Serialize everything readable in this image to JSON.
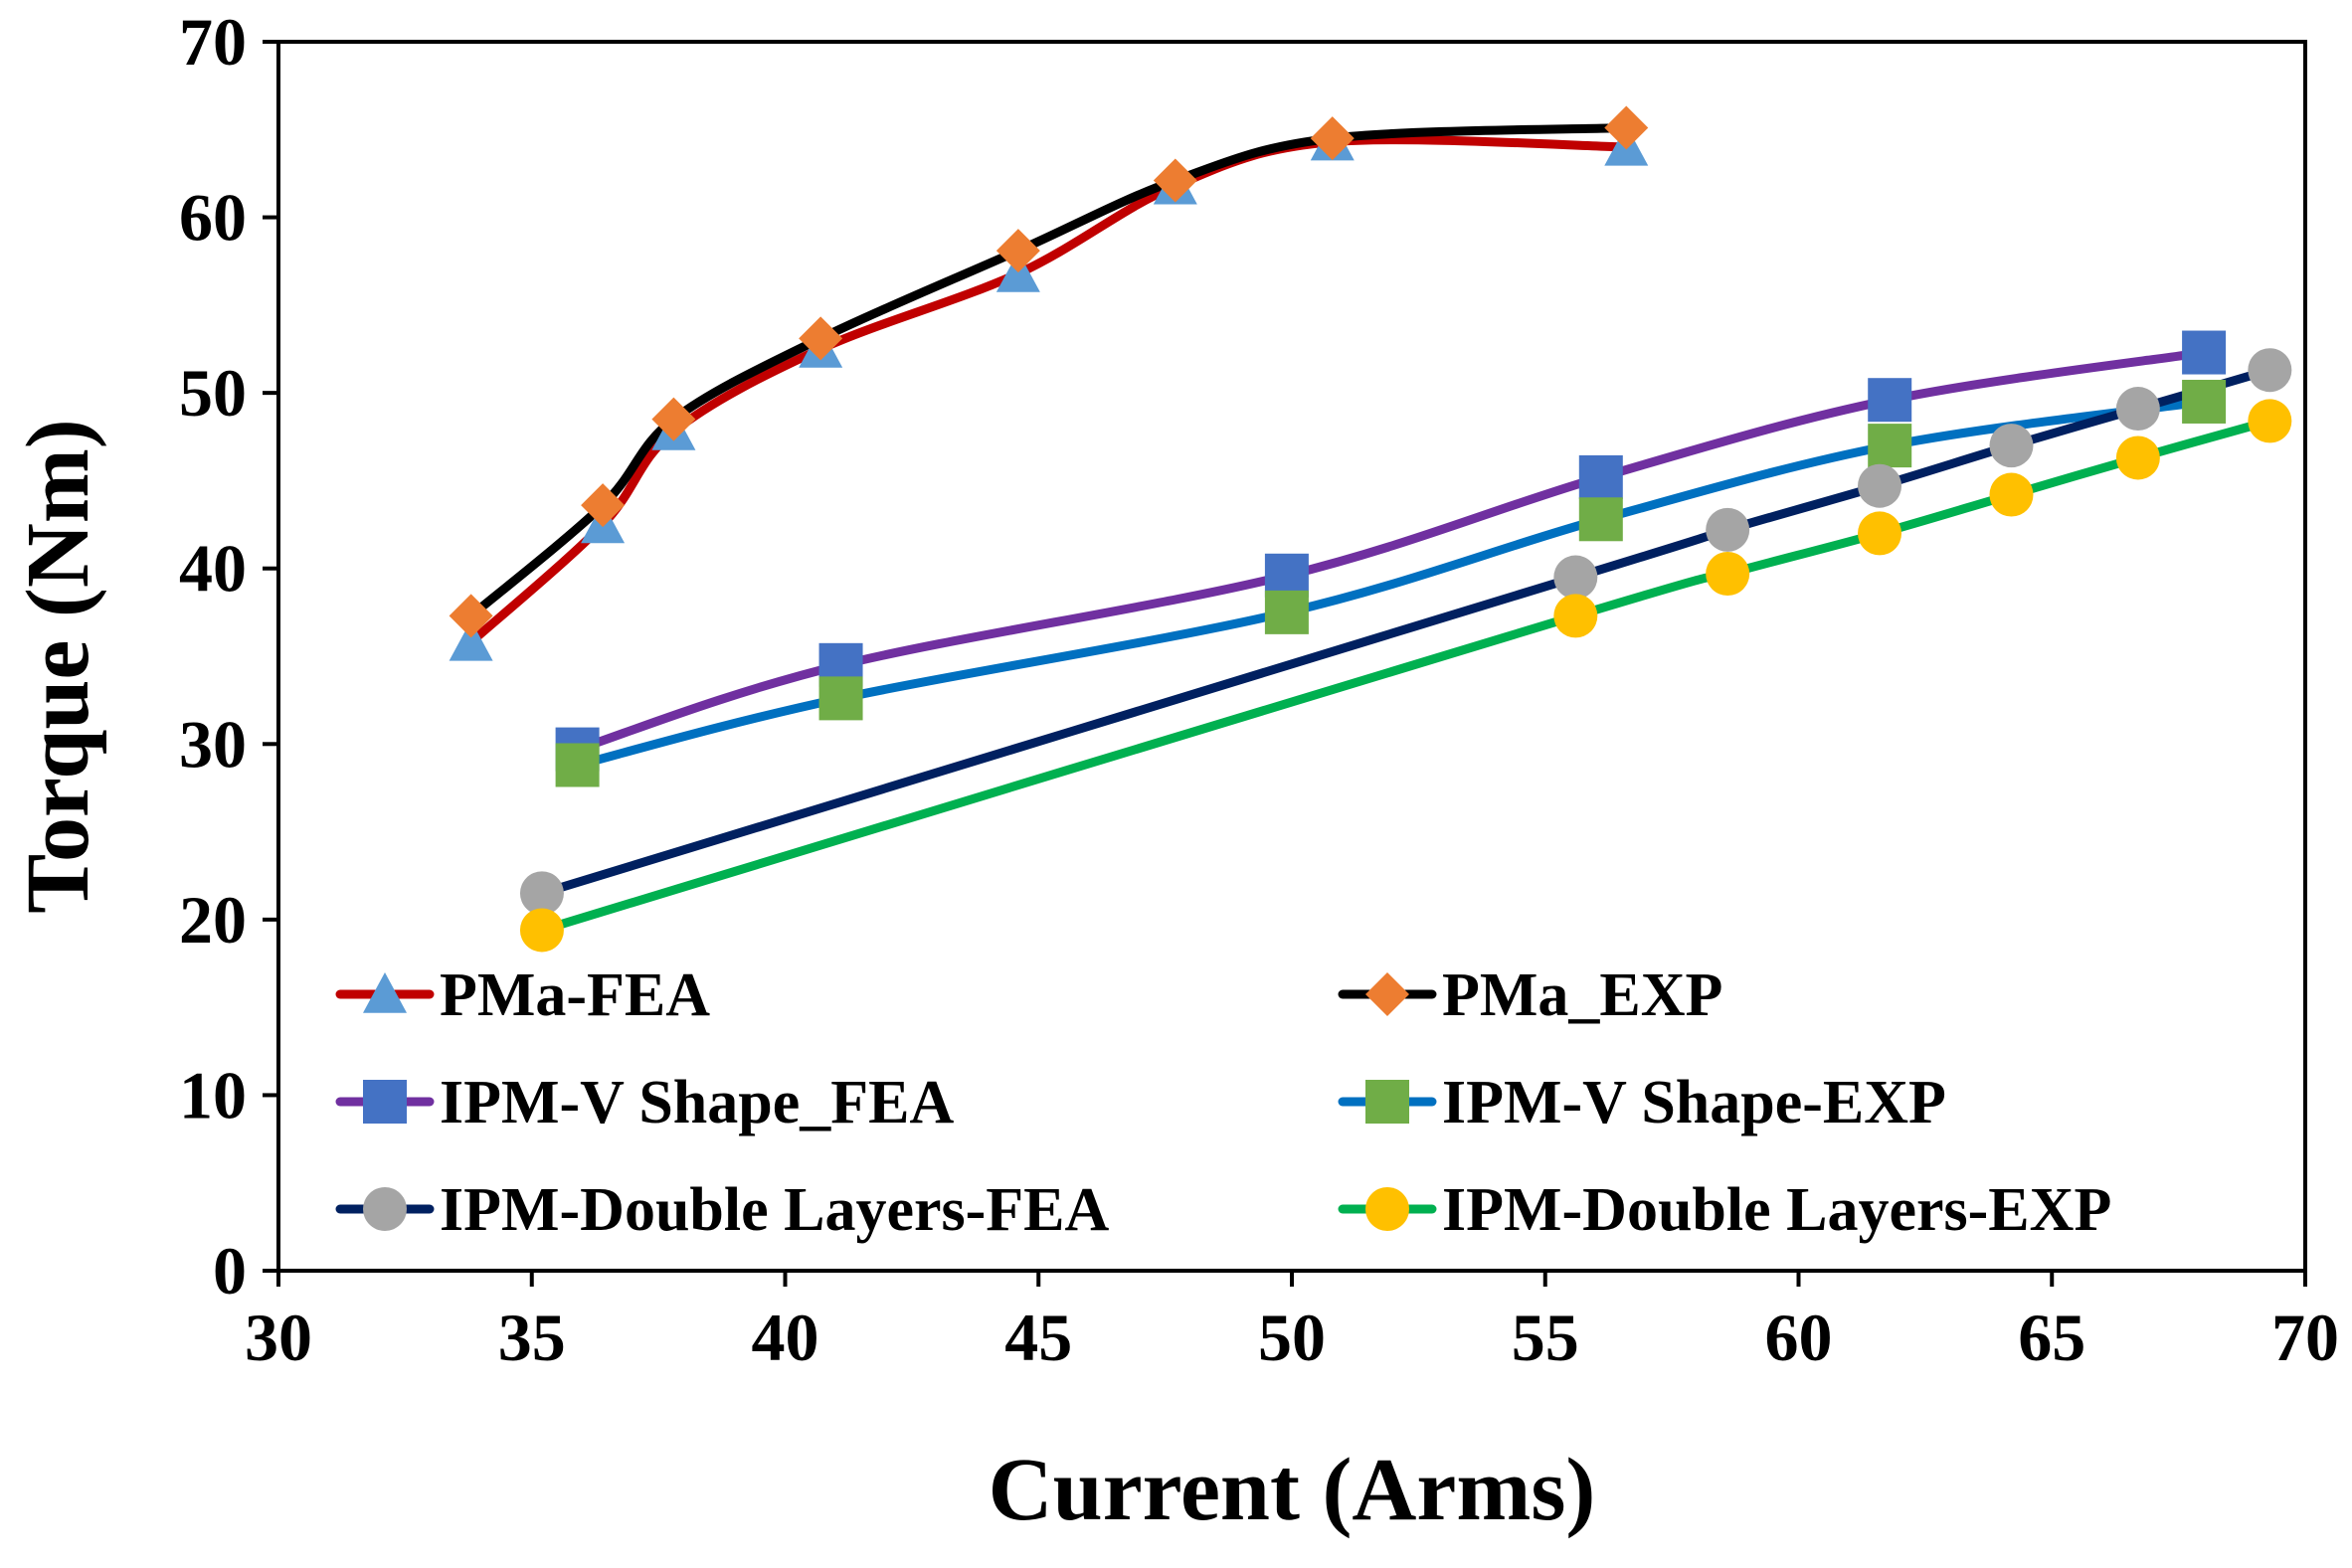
{
  "chart_data": {
    "type": "line",
    "title": "",
    "xlabel": "Current (Arms)",
    "ylabel": "Torque (Nm)",
    "xlim": [
      30,
      70
    ],
    "ylim": [
      0,
      70
    ],
    "xticks": [
      30,
      35,
      40,
      45,
      50,
      55,
      60,
      65,
      70
    ],
    "yticks": [
      0,
      10,
      20,
      30,
      40,
      50,
      60,
      70
    ],
    "grid": false,
    "legend_position": "lower-left inside plot, two columns",
    "series": [
      {
        "name": "PMa-FEA",
        "color": "#C00000",
        "marker": "triangle",
        "marker_color": "#5B9BD5",
        "x": [
          33.8,
          36.4,
          37.8,
          40.7,
          44.6,
          47.7,
          50.8,
          56.6
        ],
        "y": [
          35.8,
          42.5,
          47.8,
          52.5,
          56.8,
          61.8,
          64.3,
          64.0
        ]
      },
      {
        "name": "PMa_EXP",
        "color": "#000000",
        "marker": "diamond",
        "marker_color": "#ED7D31",
        "x": [
          33.8,
          36.4,
          37.8,
          40.7,
          44.6,
          47.7,
          50.8,
          56.6
        ],
        "y": [
          37.3,
          43.6,
          48.5,
          53.1,
          58.1,
          62.1,
          64.5,
          65.1
        ]
      },
      {
        "name": "IPM-V Shape_FEA",
        "color": "#7030A0",
        "marker": "square",
        "marker_color": "#4472C4",
        "x": [
          35.9,
          41.1,
          49.9,
          56.1,
          61.8,
          68.0
        ],
        "y": [
          29.7,
          34.5,
          39.6,
          45.2,
          49.6,
          52.3
        ]
      },
      {
        "name": "IPM-V Shape-EXP",
        "color": "#0070C0",
        "marker": "square",
        "marker_color": "#70AD47",
        "x": [
          35.9,
          41.1,
          49.9,
          56.1,
          61.8,
          68.0
        ],
        "y": [
          28.8,
          32.6,
          37.5,
          42.8,
          47.0,
          49.5
        ]
      },
      {
        "name": "IPM-Double Layers-FEA",
        "color": "#002060",
        "marker": "circle",
        "marker_color": "#A5A5A5",
        "x": [
          35.2,
          55.6,
          58.6,
          61.6,
          64.2,
          66.7,
          69.3
        ],
        "y": [
          21.5,
          39.5,
          42.2,
          44.7,
          47.0,
          49.1,
          51.3
        ]
      },
      {
        "name": "IPM-Double Layers-EXP",
        "color": "#00B050",
        "marker": "circle",
        "marker_color": "#FFC000",
        "x": [
          35.2,
          55.6,
          58.6,
          61.6,
          64.2,
          66.7,
          69.3
        ],
        "y": [
          19.4,
          37.3,
          39.7,
          42.0,
          44.2,
          46.3,
          48.4
        ]
      }
    ]
  }
}
